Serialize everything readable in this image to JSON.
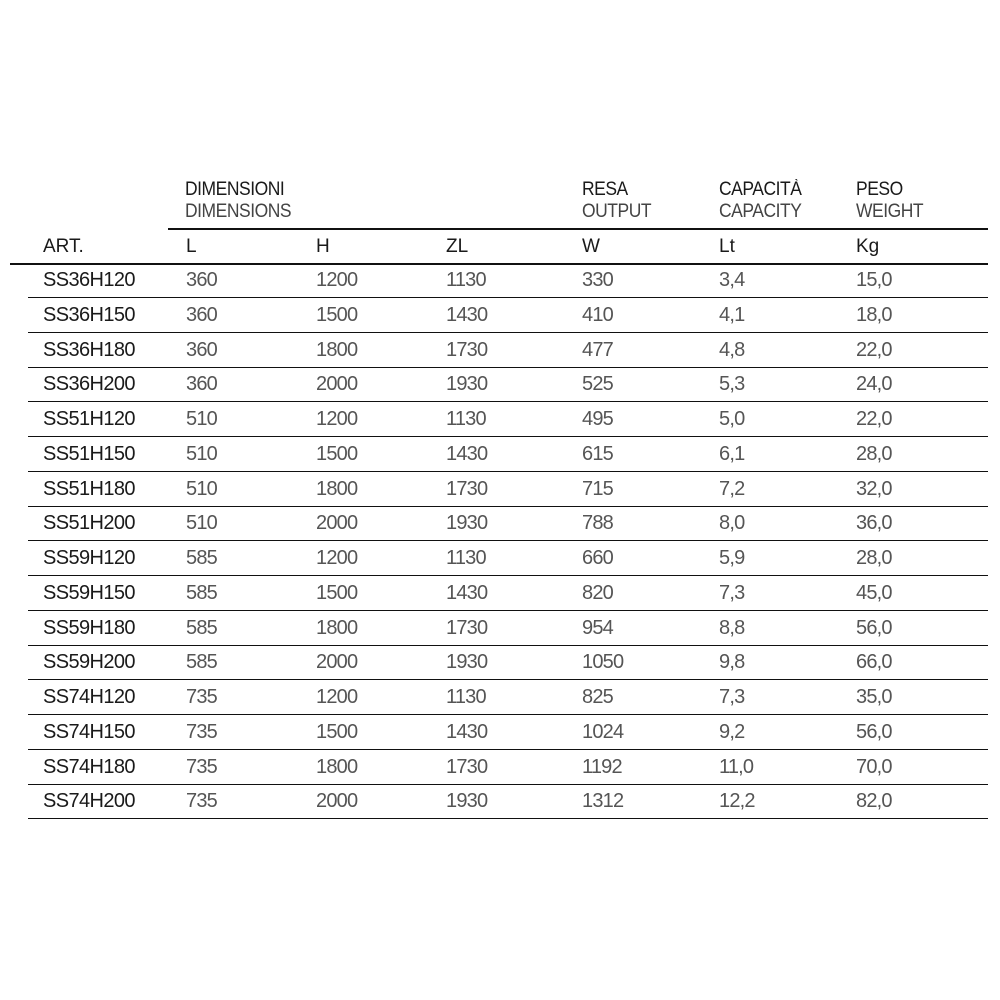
{
  "headers": {
    "dimensions": {
      "it": "DIMENSIONI",
      "en": "DIMENSIONS"
    },
    "output": {
      "it": "RESA",
      "en": "OUTPUT"
    },
    "capacity": {
      "it": "CAPACITÀ",
      "en": "CAPACITY"
    },
    "weight": {
      "it": "PESO",
      "en": "WEIGHT"
    }
  },
  "columns": [
    "ART.",
    "L",
    "H",
    "ZL",
    "W",
    "Lt",
    "Kg"
  ],
  "rows": [
    [
      "SS36H120",
      "360",
      "1200",
      "1130",
      "330",
      "3,4",
      "15,0"
    ],
    [
      "SS36H150",
      "360",
      "1500",
      "1430",
      "410",
      "4,1",
      "18,0"
    ],
    [
      "SS36H180",
      "360",
      "1800",
      "1730",
      "477",
      "4,8",
      "22,0"
    ],
    [
      "SS36H200",
      "360",
      "2000",
      "1930",
      "525",
      "5,3",
      "24,0"
    ],
    [
      "SS51H120",
      "510",
      "1200",
      "1130",
      "495",
      "5,0",
      "22,0"
    ],
    [
      "SS51H150",
      "510",
      "1500",
      "1430",
      "615",
      "6,1",
      "28,0"
    ],
    [
      "SS51H180",
      "510",
      "1800",
      "1730",
      "715",
      "7,2",
      "32,0"
    ],
    [
      "SS51H200",
      "510",
      "2000",
      "1930",
      "788",
      "8,0",
      "36,0"
    ],
    [
      "SS59H120",
      "585",
      "1200",
      "1130",
      "660",
      "5,9",
      "28,0"
    ],
    [
      "SS59H150",
      "585",
      "1500",
      "1430",
      "820",
      "7,3",
      "45,0"
    ],
    [
      "SS59H180",
      "585",
      "1800",
      "1730",
      "954",
      "8,8",
      "56,0"
    ],
    [
      "SS59H200",
      "585",
      "2000",
      "1930",
      "1050",
      "9,8",
      "66,0"
    ],
    [
      "SS74H120",
      "735",
      "1200",
      "1130",
      "825",
      "7,3",
      "35,0"
    ],
    [
      "SS74H150",
      "735",
      "1500",
      "1430",
      "1024",
      "9,2",
      "56,0"
    ],
    [
      "SS74H180",
      "735",
      "1800",
      "1730",
      "1192",
      "11,0",
      "70,0"
    ],
    [
      "SS74H200",
      "735",
      "2000",
      "1930",
      "1312",
      "12,2",
      "82,0"
    ]
  ]
}
